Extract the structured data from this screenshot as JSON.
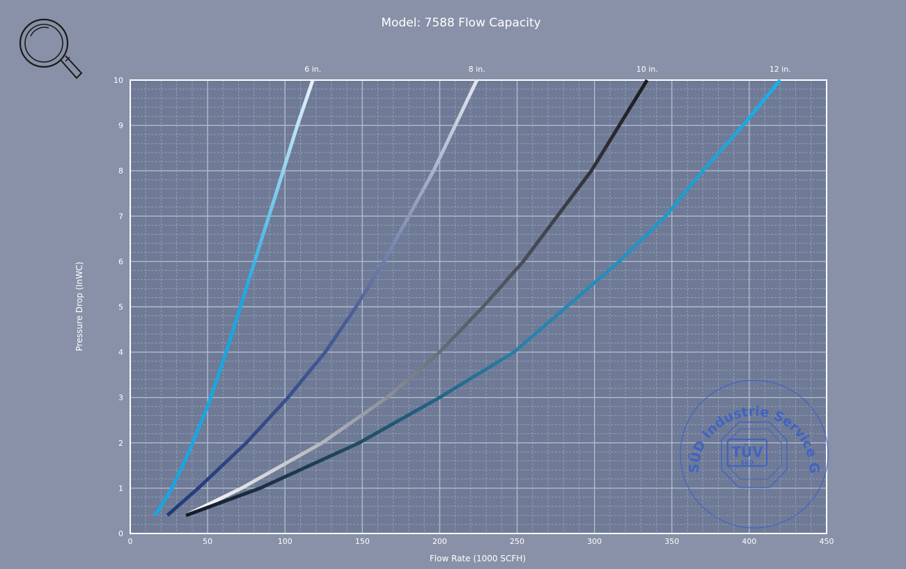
{
  "zoom_button": {
    "icon": "magnifier-icon"
  },
  "stamp": {
    "outer_text": "TÜV SÜD Industrie Service GmbH",
    "logo_top": "TÜV",
    "logo_bottom": "SÜD",
    "color": "#3a5fc8"
  },
  "colors": {
    "background": "#8891a7",
    "plot_background": "#6e7a96",
    "grid_major": "#b3bccd",
    "grid_minor": "#95a0b6",
    "frame": "#ffffff",
    "text": "#ffffff"
  },
  "chart_data": {
    "type": "line",
    "title": "Model: 7588 Flow Capacity",
    "xlabel": "Flow Rate (1000 SCFH)",
    "ylabel": "Pressure Drop (InWC)",
    "xlim": [
      0,
      450
    ],
    "ylim": [
      0,
      10
    ],
    "xticks": [
      "0",
      "50",
      "100",
      "150",
      "200",
      "250",
      "300",
      "350",
      "400",
      "450"
    ],
    "yticks": [
      "0",
      "1",
      "2",
      "3",
      "4",
      "5",
      "6",
      "7",
      "8",
      "9",
      "10"
    ],
    "grid": true,
    "legend": "series labels above plot at line ends",
    "series": [
      {
        "name": "6 in.",
        "gradient": [
          "#1aa6e0",
          "#1aa6e0",
          "#e8f4fb"
        ],
        "points": [
          [
            16,
            0.4
          ],
          [
            27,
            1.0
          ],
          [
            38,
            1.8
          ],
          [
            50,
            2.8
          ],
          [
            62,
            4.0
          ],
          [
            74,
            5.3
          ],
          [
            85,
            6.5
          ],
          [
            97,
            7.8
          ],
          [
            108,
            9.0
          ],
          [
            118,
            10.0
          ]
        ]
      },
      {
        "name": "8 in.",
        "gradient": [
          "#1f3a78",
          "#4b5c96",
          "#e3e6ef"
        ],
        "points": [
          [
            24,
            0.4
          ],
          [
            44,
            1.0
          ],
          [
            75,
            2.0
          ],
          [
            102,
            3.0
          ],
          [
            126,
            4.0
          ],
          [
            146,
            5.0
          ],
          [
            164,
            6.0
          ],
          [
            180,
            7.0
          ],
          [
            196,
            8.0
          ],
          [
            210,
            9.0
          ],
          [
            224,
            10.0
          ]
        ]
      },
      {
        "name": "10 in.",
        "gradient": [
          "#ffffff",
          "#5e6470",
          "#1c1c20"
        ],
        "points": [
          [
            36,
            0.4
          ],
          [
            72,
            1.0
          ],
          [
            124,
            2.0
          ],
          [
            166,
            3.0
          ],
          [
            200,
            4.0
          ],
          [
            228,
            5.0
          ],
          [
            254,
            6.0
          ],
          [
            276,
            7.0
          ],
          [
            298,
            8.0
          ],
          [
            316,
            9.0
          ],
          [
            334,
            10.0
          ]
        ]
      },
      {
        "name": "12 in.",
        "gradient": [
          "#161a24",
          "#2a7fa8",
          "#1ab0e8"
        ],
        "points": [
          [
            36,
            0.4
          ],
          [
            84,
            1.0
          ],
          [
            148,
            2.0
          ],
          [
            200,
            3.0
          ],
          [
            248,
            4.0
          ],
          [
            282,
            5.0
          ],
          [
            316,
            6.0
          ],
          [
            346,
            7.0
          ],
          [
            370,
            8.0
          ],
          [
            396,
            9.0
          ],
          [
            420,
            10.0
          ]
        ]
      }
    ]
  }
}
